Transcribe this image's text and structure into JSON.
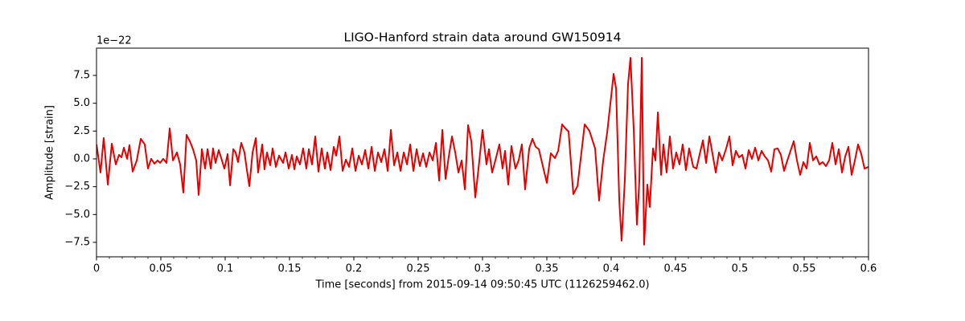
{
  "chart_data": {
    "type": "line",
    "title": "LIGO-Hanford strain data around GW150914",
    "xlabel": "Time [seconds] from 2015-09-14 09:50:45 UTC (1126259462.0)",
    "ylabel": "Amplitude [strain]",
    "y_offset_label": "1e−22",
    "xlim": [
      0,
      0.6
    ],
    "ylim": [
      -8.8,
      9.95
    ],
    "xticks": [
      0,
      0.05,
      0.1,
      0.15,
      0.2,
      0.25,
      0.3,
      0.35,
      0.4,
      0.45,
      0.5,
      0.55,
      0.6
    ],
    "xminorticks": [
      0.01,
      0.02,
      0.03,
      0.04,
      0.06,
      0.07,
      0.08,
      0.09,
      0.11,
      0.12,
      0.13,
      0.14,
      0.16,
      0.17,
      0.18,
      0.19,
      0.21,
      0.22,
      0.23,
      0.24,
      0.26,
      0.27,
      0.28,
      0.29,
      0.31,
      0.32,
      0.33,
      0.34,
      0.36,
      0.37,
      0.38,
      0.39,
      0.41,
      0.42,
      0.43,
      0.44,
      0.46,
      0.47,
      0.48,
      0.49,
      0.51,
      0.52,
      0.53,
      0.54,
      0.56,
      0.57,
      0.58,
      0.59
    ],
    "yticks": [
      {
        "value": -7.5,
        "label": "−7.5"
      },
      {
        "value": -5,
        "label": "−5.0"
      },
      {
        "value": -2.5,
        "label": "−2.5"
      },
      {
        "value": 0,
        "label": "0.0"
      },
      2.5,
      {
        "value": 5,
        "label": "5.0"
      },
      7.5
    ],
    "grid": false,
    "x": [
      0,
      0.0031,
      0.0056,
      0.0088,
      0.0119,
      0.015,
      0.0175,
      0.0194,
      0.0213,
      0.0238,
      0.0256,
      0.0281,
      0.0313,
      0.0344,
      0.0375,
      0.04,
      0.0425,
      0.045,
      0.0475,
      0.0494,
      0.0519,
      0.0544,
      0.0569,
      0.0594,
      0.0625,
      0.065,
      0.0675,
      0.07,
      0.0725,
      0.075,
      0.0775,
      0.0794,
      0.0819,
      0.0844,
      0.0863,
      0.0888,
      0.0906,
      0.0925,
      0.095,
      0.0975,
      0.0994,
      0.1019,
      0.1038,
      0.1063,
      0.1081,
      0.11,
      0.1125,
      0.115,
      0.1169,
      0.1188,
      0.1213,
      0.1238,
      0.1256,
      0.1288,
      0.1306,
      0.1325,
      0.135,
      0.1369,
      0.1394,
      0.1419,
      0.145,
      0.1469,
      0.1494,
      0.1519,
      0.1538,
      0.1556,
      0.1581,
      0.1606,
      0.1631,
      0.165,
      0.1675,
      0.17,
      0.1725,
      0.175,
      0.1775,
      0.1794,
      0.1819,
      0.1844,
      0.1863,
      0.1888,
      0.1913,
      0.1938,
      0.1963,
      0.1988,
      0.2013,
      0.2038,
      0.2063,
      0.2088,
      0.2113,
      0.2138,
      0.2163,
      0.2188,
      0.2213,
      0.2238,
      0.2263,
      0.2288,
      0.2313,
      0.2338,
      0.2363,
      0.2388,
      0.2413,
      0.2438,
      0.2463,
      0.2488,
      0.2513,
      0.2538,
      0.2563,
      0.2588,
      0.2613,
      0.2638,
      0.2663,
      0.2688,
      0.2713,
      0.2738,
      0.2763,
      0.2788,
      0.2813,
      0.2838,
      0.2863,
      0.2888,
      0.2913,
      0.2944,
      0.2969,
      0.3,
      0.3031,
      0.305,
      0.3075,
      0.31,
      0.3131,
      0.3156,
      0.3175,
      0.32,
      0.3225,
      0.3256,
      0.3281,
      0.3306,
      0.3331,
      0.3363,
      0.3388,
      0.3413,
      0.3438,
      0.3469,
      0.35,
      0.3531,
      0.3563,
      0.3588,
      0.3619,
      0.3644,
      0.3669,
      0.3706,
      0.3738,
      0.3769,
      0.3794,
      0.3831,
      0.3875,
      0.3906,
      0.3938,
      0.3969,
      0.4,
      0.4019,
      0.4038,
      0.4063,
      0.4081,
      0.4106,
      0.4131,
      0.415,
      0.4175,
      0.42,
      0.4219,
      0.4238,
      0.4256,
      0.4281,
      0.43,
      0.4325,
      0.4344,
      0.4363,
      0.4388,
      0.4406,
      0.4431,
      0.4456,
      0.4481,
      0.4506,
      0.4531,
      0.4556,
      0.4581,
      0.4606,
      0.4638,
      0.4663,
      0.4688,
      0.4713,
      0.4738,
      0.4763,
      0.4788,
      0.4813,
      0.4838,
      0.4863,
      0.4894,
      0.4919,
      0.4944,
      0.4969,
      0.4994,
      0.5019,
      0.5044,
      0.5069,
      0.5094,
      0.5119,
      0.5144,
      0.5169,
      0.5194,
      0.5219,
      0.5244,
      0.5269,
      0.5294,
      0.5319,
      0.5344,
      0.5369,
      0.5394,
      0.5419,
      0.5444,
      0.5469,
      0.5494,
      0.5519,
      0.5544,
      0.5569,
      0.5594,
      0.5619,
      0.5644,
      0.5669,
      0.5694,
      0.5719,
      0.5744,
      0.5769,
      0.5794,
      0.5819,
      0.5844,
      0.5869,
      0.5894,
      0.5919,
      0.5944,
      0.5969,
      0.6
    ],
    "series": [
      {
        "color": "#e50000",
        "values": [
          1.3,
          -1.23,
          1.87,
          -2.31,
          1.37,
          -0.5,
          0.36,
          0.14,
          1.01,
          0,
          1.23,
          -1.15,
          -0.14,
          1.8,
          1.3,
          -0.87,
          0,
          -0.43,
          -0.14,
          -0.36,
          0,
          -0.36,
          2.74,
          -0.14,
          0.58,
          -0.5,
          -3.03,
          2.16,
          1.59,
          0.87,
          -0.14,
          -3.24,
          0.87,
          -0.87,
          0.87,
          -0.87,
          0.94,
          -0.36,
          0.79,
          -0.14,
          -0.87,
          0.43,
          -2.38,
          0.87,
          0.58,
          -0.29,
          1.44,
          0.58,
          -1.01,
          -2.45,
          0.58,
          1.87,
          -1.23,
          1.3,
          -0.94,
          0.58,
          -0.58,
          0.94,
          -0.72,
          0.29,
          -0.36,
          0.58,
          -0.87,
          0.36,
          -0.94,
          0.22,
          -0.5,
          0.94,
          -0.87,
          0.87,
          -0.5,
          2.02,
          -1.15,
          0.94,
          -0.87,
          0.58,
          -1.01,
          1.08,
          0.29,
          2.02,
          -1.08,
          -0.07,
          -0.72,
          0.94,
          -1.08,
          0.29,
          -0.5,
          0.79,
          -0.87,
          1.08,
          -1.08,
          0.58,
          -0.29,
          0.87,
          -1.08,
          2.6,
          -0.58,
          0.58,
          -1.08,
          0.58,
          -0.5,
          1.3,
          -1.08,
          0.87,
          -0.65,
          0.5,
          -0.72,
          0.58,
          -0.14,
          1.44,
          -1.95,
          2.6,
          -1.8,
          0.22,
          2.02,
          0.58,
          -1.23,
          -0.14,
          -2.74,
          3.03,
          1.59,
          -3.46,
          -0.87,
          2.6,
          -0.5,
          0.87,
          -1.23,
          -0.14,
          1.3,
          -0.87,
          0.72,
          -2.31,
          1.15,
          -0.87,
          -0.14,
          1.3,
          -2.74,
          0.94,
          1.8,
          1.08,
          0.87,
          -0.65,
          -2.16,
          0.5,
          0.07,
          0.72,
          3.1,
          2.74,
          2.45,
          -3.17,
          -2.45,
          0.58,
          3.1,
          2.52,
          0.94,
          -3.75,
          -0.14,
          2.38,
          5.62,
          7.64,
          6.34,
          -3.75,
          -7.35,
          -1.95,
          6.71,
          9.08,
          2.74,
          -5.91,
          -1.95,
          9.08,
          -7.71,
          -2.31,
          -4.33,
          0.94,
          -0.14,
          4.18,
          -1.44,
          1.3,
          -1.23,
          2.02,
          -0.87,
          0.58,
          -0.5,
          1.3,
          -1.01,
          0.94,
          -0.72,
          -0.87,
          0.43,
          1.66,
          -0.36,
          2.02,
          0.43,
          -1.23,
          0.58,
          -0.14,
          0.94,
          2.02,
          -0.58,
          0.72,
          0.14,
          0.36,
          -0.87,
          0.79,
          0,
          1.01,
          -0.14,
          0.72,
          0.22,
          -0.14,
          -1.15,
          0.87,
          0.94,
          0.36,
          -1.08,
          -0.14,
          0.72,
          1.59,
          -0.14,
          -1.44,
          -0.29,
          -0.87,
          1.44,
          -0.14,
          0.22,
          -0.5,
          -0.29,
          -0.65,
          -0.14,
          1.44,
          -0.5,
          0.87,
          -1.23,
          0.22,
          1.08,
          -1.44,
          -0.14,
          1.3,
          0.43,
          -0.87,
          -0.72
        ]
      }
    ]
  }
}
